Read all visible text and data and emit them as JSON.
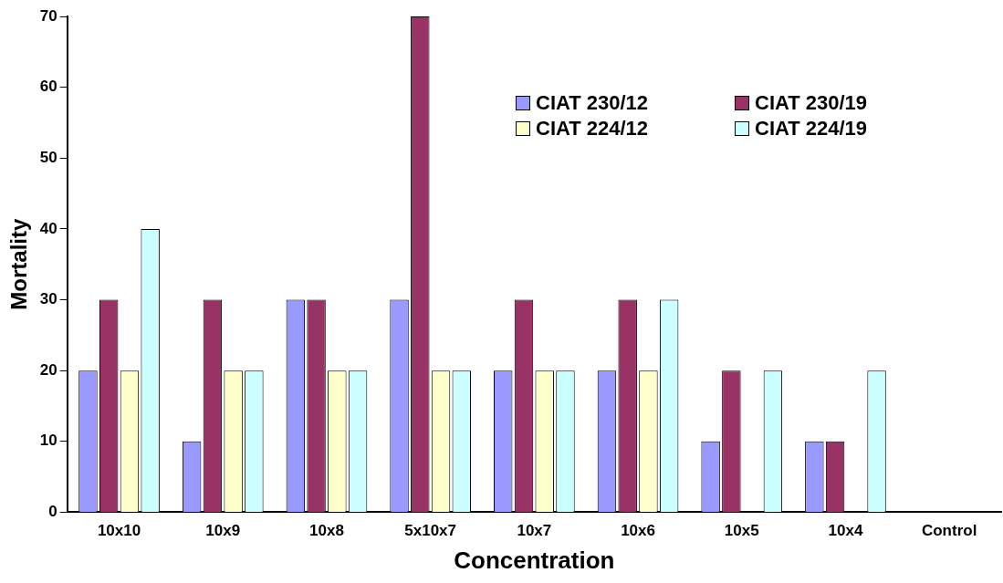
{
  "chart_data": {
    "type": "bar",
    "xlabel": "Concentration",
    "ylabel": "Mortality",
    "categories": [
      "10x10",
      "10x9",
      "10x8",
      "5x10x7",
      "10x7",
      "10x6",
      "10x5",
      "10x4",
      "Control"
    ],
    "series": [
      {
        "name": "CIAT 230/12",
        "color": "#9999ff",
        "values": [
          20,
          10,
          30,
          30,
          20,
          20,
          10,
          10,
          0
        ]
      },
      {
        "name": "CIAT 230/19",
        "color": "#993366",
        "values": [
          30,
          30,
          30,
          70,
          30,
          30,
          20,
          10,
          0
        ]
      },
      {
        "name": "CIAT 224/12",
        "color": "#ffffcc",
        "values": [
          20,
          20,
          20,
          20,
          20,
          20,
          0,
          0,
          0
        ]
      },
      {
        "name": "CIAT 224/19",
        "color": "#ccffff",
        "values": [
          40,
          20,
          20,
          20,
          20,
          30,
          20,
          20,
          0
        ]
      }
    ],
    "ylim": [
      0,
      70
    ],
    "yticks": [
      0,
      10,
      20,
      30,
      40,
      50,
      60,
      70
    ],
    "grid": false,
    "legend": "top right"
  }
}
